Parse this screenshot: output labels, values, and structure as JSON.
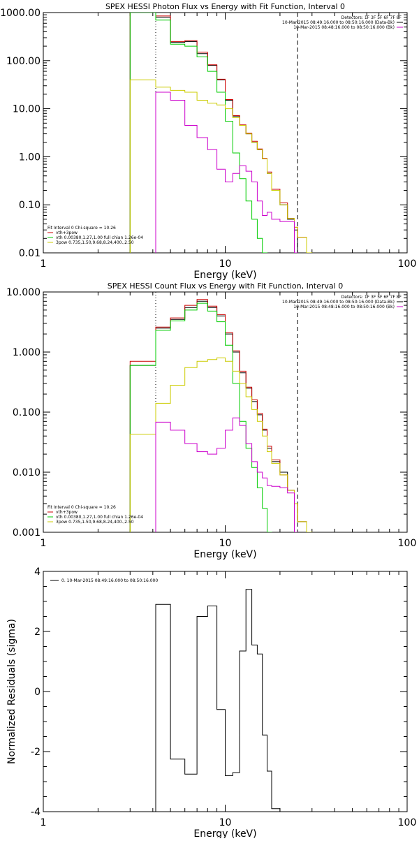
{
  "chart_data": [
    {
      "type": "line",
      "title": "SPEX HESSI Photon Flux vs Energy with Fit Function, Interval 0",
      "xlabel": "Energy (keV)",
      "ylabel": "",
      "xscale": "log",
      "yscale": "log",
      "xlim": [
        1,
        100
      ],
      "ylim": [
        0.01,
        1000
      ],
      "xticks": [
        "1",
        "10",
        "100"
      ],
      "yticks": [
        "0.01",
        "0.10",
        "1.00",
        "10.00",
        "100.00",
        "1000.00"
      ],
      "grid": false,
      "legend_position": "top-right",
      "legend_title": "Detectors: 1F 3F 5F 6F 7F 8F",
      "legend": [
        {
          "label": "10-Mar-2015 08:49:16.000 to 08:50:16.000 (Data-Bk)",
          "color": "#000000"
        },
        {
          "label": "10-Mar-2015 08:48:16.000 to 08:50:16.000 (Bk)",
          "color": "#cc00cc"
        }
      ],
      "fit_info": {
        "lines": [
          "Fit Interval 0   Chi-square = 10.26",
          "vth+3pow",
          "vth 0.00380,1.27,1.00  full chian 1.26e-04",
          "3pow 0.735,1.50,9.68,8.24,400.,2.50"
        ],
        "line_colors": [
          "#000000",
          "#cc0000",
          "#00cc00",
          "#cccc00"
        ]
      },
      "markers": [
        {
          "x": 4.15,
          "style": "dotted",
          "color": "#000000"
        },
        {
          "x": 25,
          "style": "dashed",
          "color": "#000000"
        }
      ],
      "bin_edges": [
        3,
        4.15,
        5,
        6,
        7,
        8,
        9,
        10,
        11,
        12,
        13,
        14,
        15,
        16,
        17,
        18,
        20,
        22,
        24,
        25,
        28,
        30
      ],
      "series": [
        {
          "name": "Data-Bk",
          "color": "#000000",
          "values": [
            1200,
            800,
            240,
            250,
            140,
            80,
            40,
            15,
            7,
            4.5,
            3,
            2,
            1.4,
            0.9,
            0.45,
            0.2,
            0.1,
            0.05,
            0.03,
            0.01,
            null
          ]
        },
        {
          "name": "vth+3pow",
          "color": "#cc0000",
          "values": [
            1200,
            850,
            250,
            260,
            150,
            82,
            41,
            15.5,
            7.2,
            4.6,
            3.1,
            2.1,
            1.45,
            0.92,
            0.48,
            0.21,
            0.11,
            0.052,
            0.034,
            0.021,
            null
          ]
        },
        {
          "name": "vth",
          "color": "#00cc00",
          "values": [
            1200,
            700,
            220,
            200,
            120,
            60,
            22,
            5.5,
            1.2,
            0.35,
            0.12,
            0.05,
            0.02,
            0.01,
            null,
            null,
            null,
            null,
            null,
            null,
            null
          ]
        },
        {
          "name": "3pow",
          "color": "#cccc00",
          "values": [
            40,
            28,
            24,
            22,
            15,
            13,
            12,
            10,
            6.5,
            4.5,
            3,
            2,
            1.4,
            0.9,
            0.45,
            0.2,
            0.1,
            0.052,
            0.034,
            0.021,
            0.01
          ]
        },
        {
          "name": "Bk",
          "color": "#cc00cc",
          "values": [
            null,
            22,
            15,
            4.5,
            2.5,
            1.4,
            0.55,
            0.3,
            0.45,
            0.65,
            0.5,
            0.3,
            0.12,
            0.06,
            0.07,
            0.05,
            0.045,
            0.045,
            0.01,
            null,
            null
          ]
        }
      ]
    },
    {
      "type": "line",
      "title": "SPEX HESSI Count Flux vs Energy with Fit Function, Interval 0",
      "xlabel": "Energy (keV)",
      "ylabel": "",
      "xscale": "log",
      "yscale": "log",
      "xlim": [
        1,
        100
      ],
      "ylim": [
        0.001,
        10
      ],
      "xticks": [
        "1",
        "10",
        "100"
      ],
      "yticks": [
        "0.001",
        "0.010",
        "0.100",
        "1.000",
        "10.000"
      ],
      "grid": false,
      "legend_position": "top-right",
      "legend_title": "Detectors: 1F 3F 5F 6F 7F 8F",
      "legend": [
        {
          "label": "10-Mar-2015 08:49:16.000 to 08:50:16.000 (Data-Bk)",
          "color": "#000000"
        },
        {
          "label": "10-Mar-2015 08:48:16.000 to 08:50:16.000 (Bk)",
          "color": "#cc00cc"
        }
      ],
      "fit_info": {
        "lines": [
          "Fit Interval 0   Chi-square = 10.26",
          "vth+3pow",
          "vth 0.00380,1.27,1.00  full chian 1.26e-04",
          "3pow 0.735,1.50,9.68,8.24,400.,2.50"
        ],
        "line_colors": [
          "#000000",
          "#cc0000",
          "#00cc00",
          "#cccc00"
        ]
      },
      "markers": [
        {
          "x": 4.15,
          "style": "dotted",
          "color": "#000000"
        },
        {
          "x": 25,
          "style": "dashed",
          "color": "#000000"
        }
      ],
      "bin_edges": [
        3,
        4.15,
        5,
        6,
        7,
        8,
        9,
        10,
        11,
        12,
        13,
        14,
        15,
        16,
        17,
        18,
        20,
        22,
        24,
        25,
        28,
        30
      ],
      "series": [
        {
          "name": "Data-Bk",
          "color": "#000000",
          "values": [
            0.6,
            2.5,
            3.5,
            5.5,
            7,
            5.5,
            4,
            2,
            1,
            0.45,
            0.25,
            0.15,
            0.09,
            0.05,
            0.025,
            0.015,
            0.01,
            0.005,
            0.003,
            0.0015,
            null
          ]
        },
        {
          "name": "vth+3pow",
          "color": "#cc0000",
          "values": [
            0.7,
            2.6,
            3.7,
            6,
            7.5,
            5.8,
            4.2,
            2.1,
            1.05,
            0.48,
            0.26,
            0.16,
            0.095,
            0.052,
            0.027,
            0.016,
            0.009,
            0.005,
            0.003,
            0.0015,
            0.001
          ]
        },
        {
          "name": "vth",
          "color": "#00cc00",
          "values": [
            0.6,
            2.3,
            3.3,
            5,
            6.5,
            4.8,
            3.2,
            1.3,
            0.3,
            0.07,
            0.025,
            0.012,
            0.0055,
            0.0025,
            0.001,
            null,
            null,
            null,
            null,
            null,
            null
          ]
        },
        {
          "name": "3pow",
          "color": "#cccc00",
          "values": [
            0.043,
            0.14,
            0.28,
            0.55,
            0.7,
            0.75,
            0.8,
            0.7,
            0.48,
            0.3,
            0.18,
            0.11,
            0.07,
            0.04,
            0.022,
            0.014,
            0.009,
            0.005,
            0.003,
            0.0015,
            0.001
          ]
        },
        {
          "name": "Bk",
          "color": "#cc00cc",
          "values": [
            null,
            0.068,
            0.05,
            0.03,
            0.022,
            0.02,
            0.025,
            0.05,
            0.08,
            0.06,
            0.03,
            0.015,
            0.01,
            0.008,
            0.006,
            0.0058,
            0.0055,
            0.0045,
            0.001,
            null,
            null
          ]
        }
      ]
    },
    {
      "type": "line",
      "title": "",
      "xlabel": "Energy (keV)",
      "ylabel": "Normalized Residuals (sigma)",
      "xscale": "log",
      "yscale": "linear",
      "xlim": [
        1,
        100
      ],
      "ylim": [
        -4,
        4
      ],
      "xticks": [
        "1",
        "10",
        "100"
      ],
      "yticks": [
        "-4",
        "-2",
        "0",
        "2",
        "4"
      ],
      "grid": false,
      "legend_position": "top-left",
      "legend": [
        {
          "label": "0. 10-Mar-2015 08:49:16.000 to 08:50:16.000",
          "color": "#000000"
        }
      ],
      "bin_edges": [
        4.15,
        5,
        6,
        7,
        8,
        9,
        10,
        11,
        12,
        13,
        14,
        15,
        16,
        17,
        18,
        20,
        22,
        24,
        25
      ],
      "series": [
        {
          "name": "0. 10-Mar-2015 08:49:16.000 to 08:50:16.000",
          "color": "#000000",
          "values": [
            2.9,
            -2.25,
            -2.75,
            2.5,
            2.85,
            -0.6,
            -2.8,
            -2.7,
            1.35,
            3.4,
            1.55,
            1.25,
            -1.45,
            -2.65,
            -3.9,
            -4,
            -4,
            -4
          ]
        }
      ]
    }
  ]
}
